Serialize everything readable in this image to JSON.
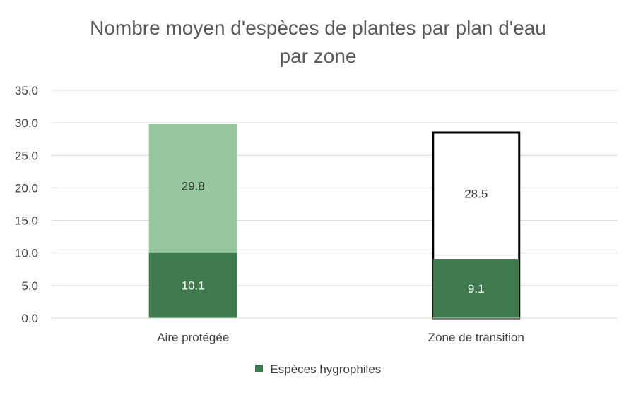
{
  "chart_data": {
    "type": "bar",
    "title": [
      "Nombre moyen d'espèces de plantes par plan d'eau",
      "par zone"
    ],
    "xlabel": "",
    "ylabel": "",
    "categories": [
      "Aire protégée",
      "Zone de transition"
    ],
    "ylim": [
      0,
      35
    ],
    "yticks": [
      "0.0",
      "5.0",
      "10.0",
      "15.0",
      "20.0",
      "25.0",
      "30.0",
      "35.0"
    ],
    "grid": true,
    "series": [
      {
        "name": "Espèces hygrophiles",
        "values": [
          10.1,
          9.1
        ],
        "labels": [
          "10.1",
          "9.1"
        ],
        "color": "#3f7a4d"
      }
    ],
    "totals": {
      "values": [
        29.8,
        28.5
      ],
      "labels": [
        "29.8",
        "28.5"
      ],
      "styles": [
        {
          "fill": "#96c79f",
          "stroke": "none"
        },
        {
          "fill": "#ffffff",
          "stroke": "#000000"
        }
      ]
    },
    "legend": {
      "position": "bottom",
      "entries": [
        "Espèces hygrophiles"
      ]
    }
  },
  "colors": {
    "grid": "#d9d9d9",
    "axis_text": "#404040",
    "title": "#595959",
    "inner_label": "#ffffff",
    "outer_label": "#333333"
  }
}
